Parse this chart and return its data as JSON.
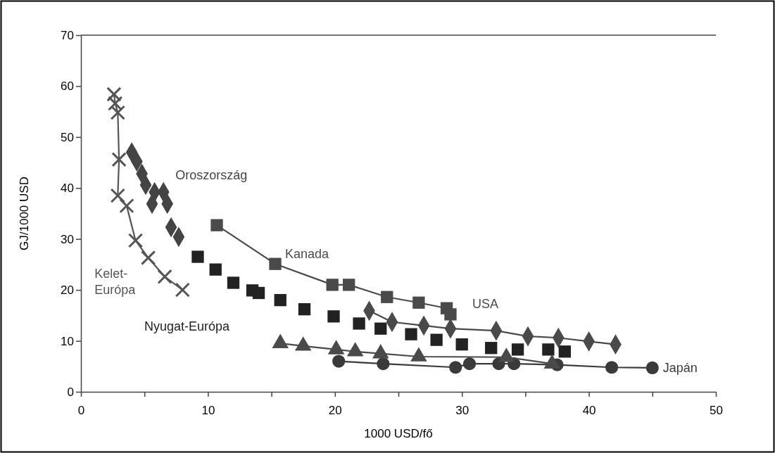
{
  "chart_data": {
    "type": "line",
    "xlabel": "1000 USD/fő",
    "ylabel": "GJ/1000 USD",
    "xlim": [
      0,
      50
    ],
    "xticks": [
      0,
      {
        "value": 5,
        "label": null
      },
      10,
      {
        "value": 15,
        "label": null
      },
      20,
      {
        "value": 25,
        "label": null
      },
      30,
      {
        "value": 35,
        "label": null
      },
      40,
      {
        "value": 45,
        "label": null
      },
      50
    ],
    "ylim": [
      0,
      70
    ],
    "yticks": [
      0,
      10,
      20,
      30,
      40,
      50,
      60,
      70
    ],
    "grid": false,
    "legend": false,
    "series": [
      {
        "name": "Kelet-Európa",
        "type": "line",
        "marker": "cross",
        "color": "#555555",
        "x": [
          2.6,
          2.7,
          2.9,
          3.0,
          2.9,
          3.6,
          4.3,
          5.3,
          6.6,
          8.0
        ],
        "values": [
          58.4,
          56.6,
          54.8,
          45.6,
          38.5,
          36.5,
          29.7,
          26.3,
          22.6,
          20.0
        ]
      },
      {
        "name": "Oroszország",
        "type": "scatter",
        "marker": "diamond",
        "color": "#444444",
        "x": [
          4.0,
          4.4,
          4.8,
          5.1,
          5.8,
          5.6,
          6.5,
          6.8,
          7.1,
          7.7
        ],
        "values": [
          47.0,
          45.2,
          42.8,
          40.6,
          39.2,
          36.9,
          39.2,
          36.9,
          32.3,
          30.4
        ]
      },
      {
        "name": "Nyugat-Európa",
        "type": "scatter",
        "marker": "square",
        "color": "#222222",
        "x": [
          9.2,
          10.6,
          12.0,
          13.5,
          14.0,
          15.7,
          17.6,
          19.9,
          21.9,
          23.6,
          26.0,
          28.0,
          30.0,
          32.3,
          34.4,
          36.8,
          38.1
        ],
        "values": [
          26.5,
          24.0,
          21.4,
          19.9,
          19.4,
          18.0,
          16.2,
          14.8,
          13.4,
          12.4,
          11.3,
          10.2,
          9.3,
          8.6,
          8.3,
          8.3,
          7.9
        ]
      },
      {
        "name": "Kanada",
        "type": "line",
        "marker": "square",
        "color": "#4a4a4a",
        "x": [
          10.7,
          15.3,
          19.8,
          21.1,
          24.1,
          26.6,
          28.8,
          29.1
        ],
        "values": [
          32.7,
          25.1,
          21.0,
          21.0,
          18.6,
          17.5,
          16.4,
          15.2
        ]
      },
      {
        "name": "USA",
        "type": "line",
        "marker": "diamond",
        "color": "#4a4a4a",
        "x": [
          22.7,
          24.5,
          27.0,
          29.1,
          32.7,
          35.2,
          37.6,
          40.0,
          42.1
        ],
        "values": [
          15.9,
          13.7,
          13.0,
          12.4,
          12.0,
          10.9,
          10.6,
          9.9,
          9.3
        ]
      },
      {
        "name": "Japán",
        "type": "line",
        "marker": "circle",
        "color": "#3a3a3a",
        "x": [
          20.3,
          23.8,
          29.5,
          30.6,
          32.9,
          34.1,
          37.5,
          41.8,
          45.0
        ],
        "values": [
          6.0,
          5.5,
          4.8,
          5.5,
          5.5,
          5.5,
          5.3,
          4.8,
          4.7
        ]
      },
      {
        "type": "line",
        "marker": "triangle",
        "color": "#4a4a4a",
        "x": [
          15.7,
          17.5,
          20.1,
          21.6,
          23.6,
          26.6,
          33.5,
          37.1
        ],
        "values": [
          9.5,
          9.0,
          8.3,
          7.9,
          7.5,
          6.9,
          6.8,
          5.5
        ]
      }
    ]
  }
}
